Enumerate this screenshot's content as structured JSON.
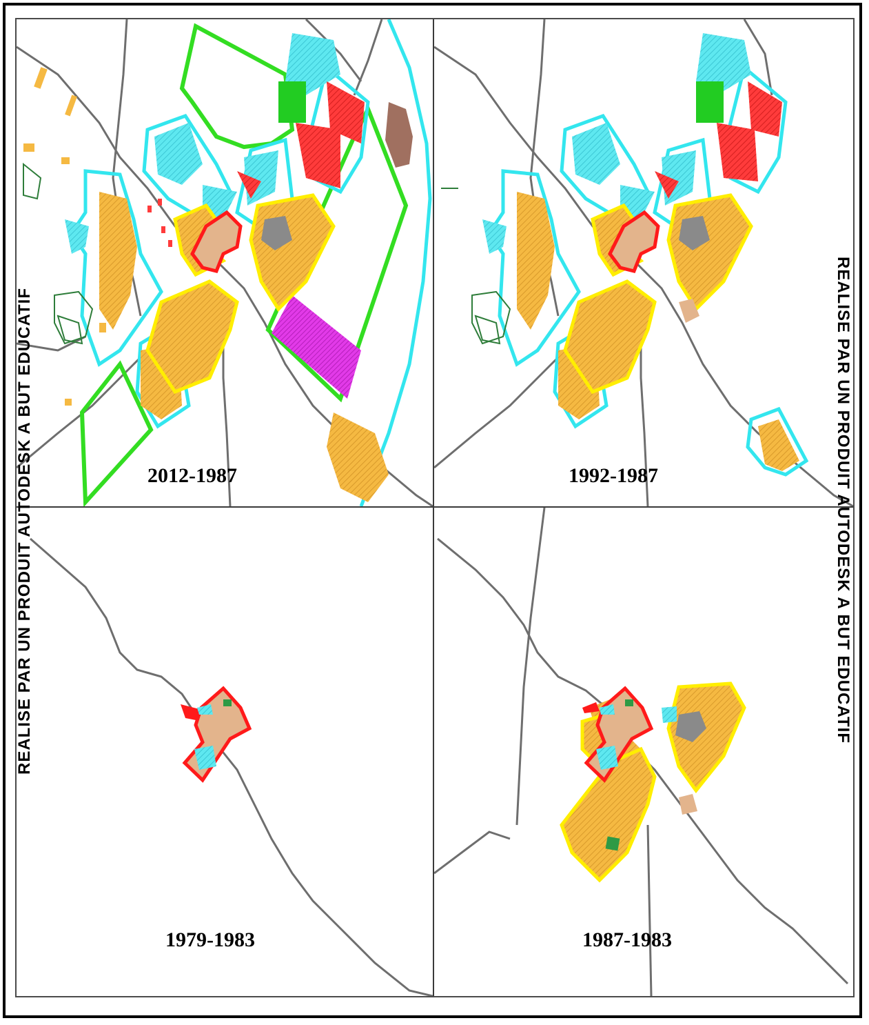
{
  "watermark": {
    "left_text": "REALISE PAR UN PRODUIT AUTODESK A BUT EDUCATIF",
    "right_text": "REALISE PAR UN PRODUIT AUTODESK A BUT EDUCATIF"
  },
  "panels": {
    "top_left": {
      "label": "2012-1987"
    },
    "top_right": {
      "label": "1992-1987"
    },
    "bottom_left": {
      "label": "1979-1983"
    },
    "bottom_right": {
      "label": "1987-1983"
    }
  },
  "colors": {
    "road": "#6e6e6e",
    "residential_fill": "#f5b942",
    "boundary_1979_1983": "#ff1a1a",
    "boundary_1983_1987": "#ffee00",
    "boundary_1987_1992": "#33e6ee",
    "boundary_1992_2012": "#33dd22",
    "facility_cyan": "#5ee8f0",
    "facility_red": "#ff3b3b",
    "facility_green": "#22cc22",
    "facility_grey": "#8a8a8a",
    "facility_tan": "#e3b48c",
    "facility_brown": "#a07060",
    "facility_magenta": "#e23ae8",
    "vegetation_outline": "#2e7d3a"
  }
}
